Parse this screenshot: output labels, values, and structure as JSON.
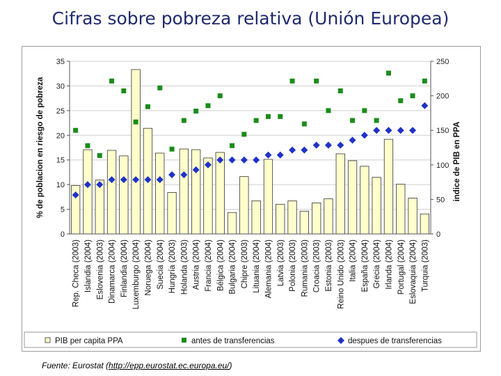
{
  "page_title": "Cifras sobre pobreza relativa (Unión Europea)",
  "source": {
    "prefix": "Fuente: Eurostat (",
    "link": "http://epp.eurostat.ec.europa.eu/",
    "suffix": ")"
  },
  "chart_data": {
    "type": "bar",
    "title": "",
    "ylabel": "% de poblacion en riesgo de pobreza",
    "y2label": "indice de PIB en PPA",
    "ylim": [
      0,
      35
    ],
    "y2lim": [
      0,
      250
    ],
    "yticks": [
      0,
      5,
      10,
      15,
      20,
      25,
      30,
      35
    ],
    "y2ticks": [
      0,
      50,
      100,
      150,
      200,
      250
    ],
    "categories": [
      "Rep. Checa (2003)",
      "Islandia (2004)",
      "Eslovenia (2003)",
      "Dinamarca (2004)",
      "Finlandia (2004)",
      "Luxemburgo (2004)",
      "Noruega (2004)",
      "Suecia (2004)",
      "Hungría (2003)",
      "Holanda (2003)",
      "Austria (2004)",
      "Francia (2004)",
      "Bélgica (2004)",
      "Bulgaria (2004)",
      "Chipre (2003)",
      "Lituania (2004)",
      "Alemania (2004)",
      "Latvia (2003)",
      "Polonia (2003)",
      "Rumania (2003)",
      "Croacia (2003)",
      "Estonia (2003)",
      "Reino Unido (2003)",
      "Italia (2004)",
      "España (2004)",
      "Grecia (2004)",
      "Irlanda (2004)",
      "Portugal (2004)",
      "Eslovaquia (2004)",
      "Turquia (2003)"
    ],
    "series": [
      {
        "name": "PIB per capita PPA",
        "kind": "bar",
        "axis": "right",
        "color": "#ffffcc",
        "values": [
          70,
          122,
          78,
          121,
          113,
          238,
          153,
          117,
          60,
          123,
          122,
          110,
          118,
          31,
          83,
          48,
          108,
          43,
          48,
          33,
          45,
          51,
          116,
          106,
          98,
          82,
          137,
          72,
          52,
          29
        ]
      },
      {
        "name": "antes de transferencias",
        "kind": "scatter",
        "axis": "left",
        "marker": "square",
        "color": "#1a8c1a",
        "values": [
          21,
          17.9,
          15.9,
          31,
          29,
          22.7,
          25.8,
          29.6,
          17.2,
          23,
          24.9,
          26,
          28,
          17.9,
          20.2,
          23,
          23.8,
          23.8,
          31,
          22.3,
          31,
          25,
          29,
          23,
          25,
          23,
          32.6,
          27,
          28,
          31
        ]
      },
      {
        "name": "despues de transferencias",
        "kind": "scatter",
        "axis": "left",
        "marker": "diamond",
        "color": "#1f32c8",
        "values": [
          7.9,
          10,
          10,
          11,
          11,
          11,
          11,
          11,
          12,
          12,
          13,
          14,
          15,
          15,
          15,
          15,
          16,
          16,
          17,
          17,
          18,
          18,
          18,
          19,
          20,
          21,
          21,
          21,
          21,
          26
        ]
      }
    ],
    "legend": [
      {
        "label": "PIB per capita PPA",
        "symbol": "bar"
      },
      {
        "label": "antes de transferencias",
        "symbol": "square"
      },
      {
        "label": "despues de transferencias",
        "symbol": "diamond"
      }
    ],
    "legend_position": "bottom"
  }
}
